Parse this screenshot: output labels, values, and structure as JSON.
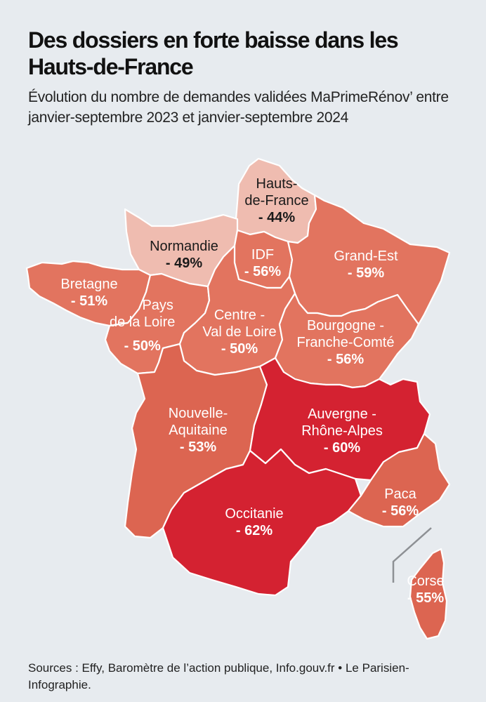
{
  "title": "Des dossiers en forte baisse dans les Hauts-de-France",
  "subtitle": "Évolution du nombre de demandes validées MaPrimeRénov’ entre janvier-septembre 2023 et janvier-septembre 2024",
  "sources": "Sources : Effy, Baromètre de l’action publique, Info.gouv.fr • Le Parisien-Infographie.",
  "colors": {
    "light": "#efbcb0",
    "medium": "#e2745f",
    "medium_dark": "#dc6551",
    "dark": "#d42231",
    "border": "#ffffff",
    "inset_line": "#8d9094"
  },
  "regions": [
    {
      "id": "hauts-de-france",
      "name": "Hauts-de-France",
      "change_pct": "- 44%"
    },
    {
      "id": "normandie",
      "name": "Normandie",
      "change_pct": "- 49%"
    },
    {
      "id": "idf",
      "name": "IDF",
      "change_pct": "- 56%"
    },
    {
      "id": "grand-est",
      "name": "Grand-Est",
      "change_pct": "- 59%"
    },
    {
      "id": "bretagne",
      "name": "Bretagne",
      "change_pct": "- 51%"
    },
    {
      "id": "pays-de-la-loire",
      "name": "Pays de la Loire",
      "change_pct": "- 50%"
    },
    {
      "id": "centre-val-de-loire",
      "name": "Centre - Val de Loire",
      "change_pct": "- 50%"
    },
    {
      "id": "bourgogne-franche-comte",
      "name": "Bourgogne - Franche-Comté",
      "change_pct": "- 56%"
    },
    {
      "id": "nouvelle-aquitaine",
      "name": "Nouvelle- Aquitaine",
      "change_pct": "- 53%"
    },
    {
      "id": "auvergne-rhone-alpes",
      "name": "Auvergne - Rhône-Alpes",
      "change_pct": "- 60%"
    },
    {
      "id": "occitanie",
      "name": "Occitanie",
      "change_pct": "- 62%"
    },
    {
      "id": "paca",
      "name": "Paca",
      "change_pct": "- 56%"
    },
    {
      "id": "corse",
      "name": "Corse",
      "change_pct": "- 55%"
    }
  ],
  "label_lines": {
    "hdf_1": "Hauts-",
    "hdf_2": "de-France",
    "normandie": "Normandie",
    "idf": "IDF",
    "grand_est": "Grand-Est",
    "bretagne": "Bretagne",
    "pdl_1": "Pays",
    "pdl_2": "de la Loire",
    "cvl_1": "Centre -",
    "cvl_2": "Val de Loire",
    "bfc_1": "Bourgogne -",
    "bfc_2": "Franche-Comté",
    "na_1": "Nouvelle-",
    "na_2": "Aquitaine",
    "ara_1": "Auvergne -",
    "ara_2": "Rhône-Alpes",
    "occitanie": "Occitanie",
    "paca": "Paca",
    "corse": "Corse"
  }
}
